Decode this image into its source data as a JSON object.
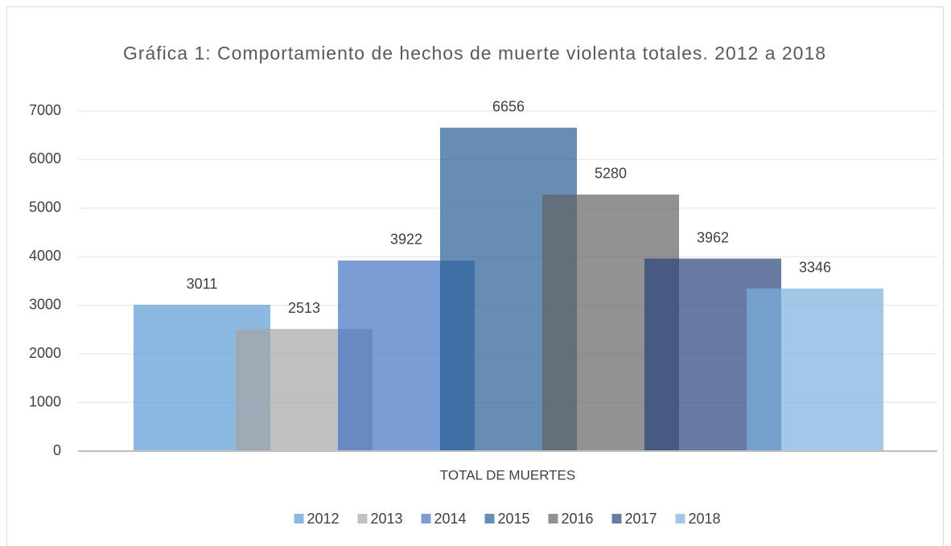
{
  "chart_data": {
    "type": "bar",
    "title": "Gráfica 1: Comportamiento de hechos de muerte violenta totales. 2012 a 2018",
    "categories": [
      "TOTAL DE MUERTES"
    ],
    "series": [
      {
        "name": "2012",
        "color": "#5b9bd5",
        "values": [
          3011
        ]
      },
      {
        "name": "2013",
        "color": "#a5a5a5",
        "values": [
          2513
        ]
      },
      {
        "name": "2014",
        "color": "#4472c4",
        "values": [
          3922
        ]
      },
      {
        "name": "2015",
        "color": "#255e91",
        "values": [
          6656
        ]
      },
      {
        "name": "2016",
        "color": "#636363",
        "values": [
          5280
        ]
      },
      {
        "name": "2017",
        "color": "#264478",
        "values": [
          3962
        ]
      },
      {
        "name": "2018",
        "color": "#7cafdd",
        "values": [
          3346
        ]
      }
    ],
    "ylim": [
      0,
      7000
    ],
    "yticks": [
      0,
      1000,
      2000,
      3000,
      4000,
      5000,
      6000,
      7000
    ],
    "grid": true,
    "legend": "bottom"
  }
}
